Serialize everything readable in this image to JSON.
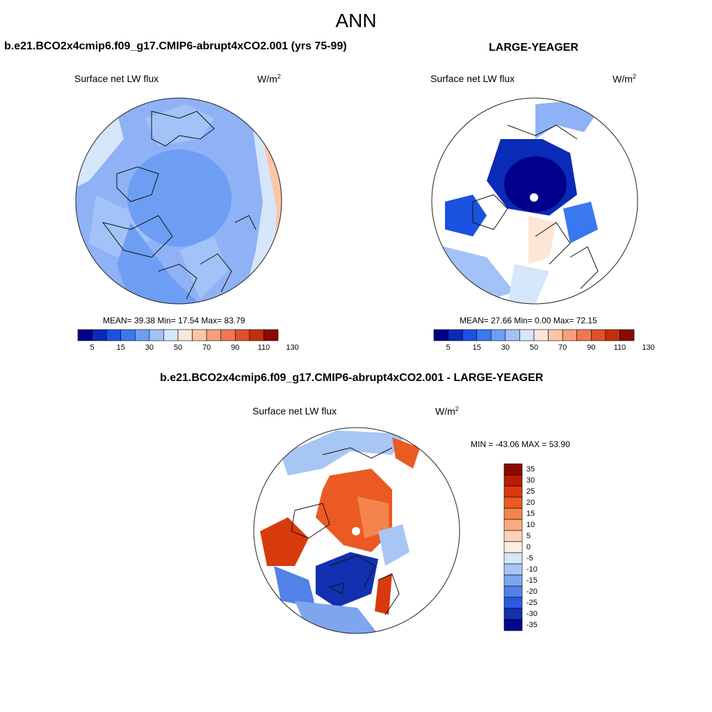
{
  "page_title": "ANN",
  "panels": [
    {
      "case_title": "b.e21.BCO2x4cmip6.f09_g17.CMIP6-abrupt4xCO2.001 (yrs 75-99)",
      "variable": "Surface net LW flux",
      "units": "W/m",
      "units_sup": "2",
      "stats": "MEAN=  39.38  Min=  17.54  Max=  83.79",
      "colorbar_labels": [
        "5",
        "15",
        "30",
        "50",
        "70",
        "90",
        "110",
        "130"
      ]
    },
    {
      "case_title": "LARGE-YEAGER",
      "variable": "Surface net LW flux",
      "units": "W/m",
      "units_sup": "2",
      "stats": "MEAN=  27.66  Min=   0.00  Max=  72.15",
      "colorbar_labels": [
        "5",
        "15",
        "30",
        "50",
        "70",
        "90",
        "110",
        "130"
      ]
    },
    {
      "case_title": "b.e21.BCO2x4cmip6.f09_g17.CMIP6-abrupt4xCO2.001 - LARGE-YEAGER",
      "variable": "Surface net LW flux",
      "units": "W/m",
      "units_sup": "2",
      "stats": "MIN = -43.06 MAX =  53.90",
      "colorbar_labels": [
        "35",
        "30",
        "25",
        "20",
        "15",
        "10",
        "5",
        "0",
        "-5",
        "-10",
        "-15",
        "-20",
        "-25",
        "-30",
        "-35"
      ]
    }
  ],
  "colors": {
    "abs_scale": [
      "#00008a",
      "#0a2ab8",
      "#1a52e0",
      "#3a78f0",
      "#6e9ef4",
      "#a2c2f8",
      "#d6e6fb",
      "#fde6d6",
      "#fbc6a8",
      "#f7a07a",
      "#f07850",
      "#e0502a",
      "#c03010",
      "#8a0a00"
    ],
    "diff_scale": [
      "#8a0a00",
      "#b81c04",
      "#d83a0e",
      "#ea5a22",
      "#f4844c",
      "#f9aa80",
      "#fcd2b8",
      "#fdeee2",
      "#d6e6fb",
      "#a8c6f4",
      "#7ea6ee",
      "#5282e8",
      "#2a5ae0",
      "#1230b0",
      "#02088a"
    ]
  }
}
